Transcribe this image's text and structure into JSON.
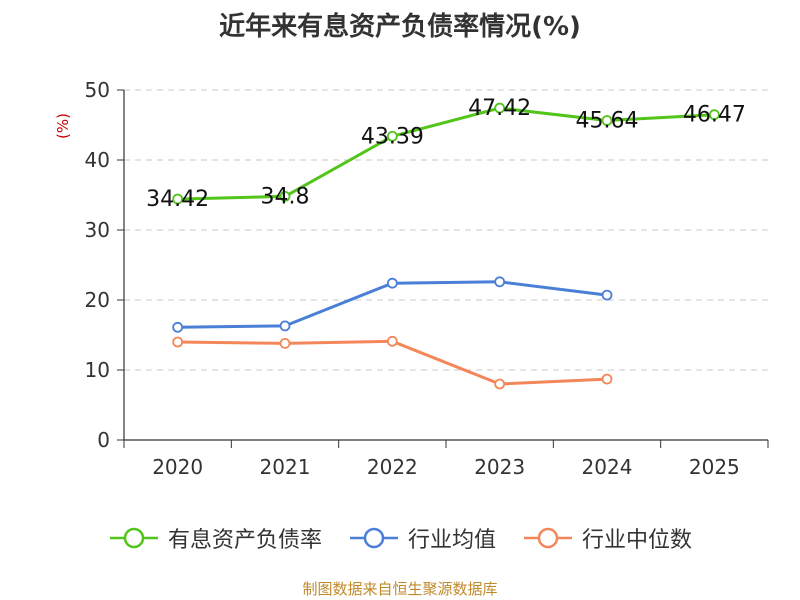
{
  "chart_data": {
    "type": "line",
    "title": "近年来有息资产负债率情况(%)",
    "ylabel": "(%)",
    "xlabel": "",
    "categories": [
      "2020",
      "2021",
      "2022",
      "2023",
      "2024",
      "2025"
    ],
    "ylim": [
      0,
      50
    ],
    "yticks": [
      0,
      10,
      20,
      30,
      40,
      50
    ],
    "grid": true,
    "legend_position": "bottom",
    "series": [
      {
        "name": "有息资产负债率",
        "color": "#52c41a",
        "values": [
          34.42,
          34.8,
          43.39,
          47.42,
          45.64,
          46.47
        ],
        "labels": [
          "34.42",
          "34.8",
          "43.39",
          "47.42",
          "45.64",
          "46.47"
        ]
      },
      {
        "name": "行业均值",
        "color": "#4a7fd8",
        "values": [
          16.1,
          16.3,
          22.4,
          22.6,
          20.7,
          null
        ]
      },
      {
        "name": "行业中位数",
        "color": "#f4875a",
        "values": [
          14.0,
          13.8,
          14.1,
          8.0,
          8.7,
          null
        ]
      }
    ]
  },
  "footer": {
    "source": "制图数据来自恒生聚源数据库"
  }
}
